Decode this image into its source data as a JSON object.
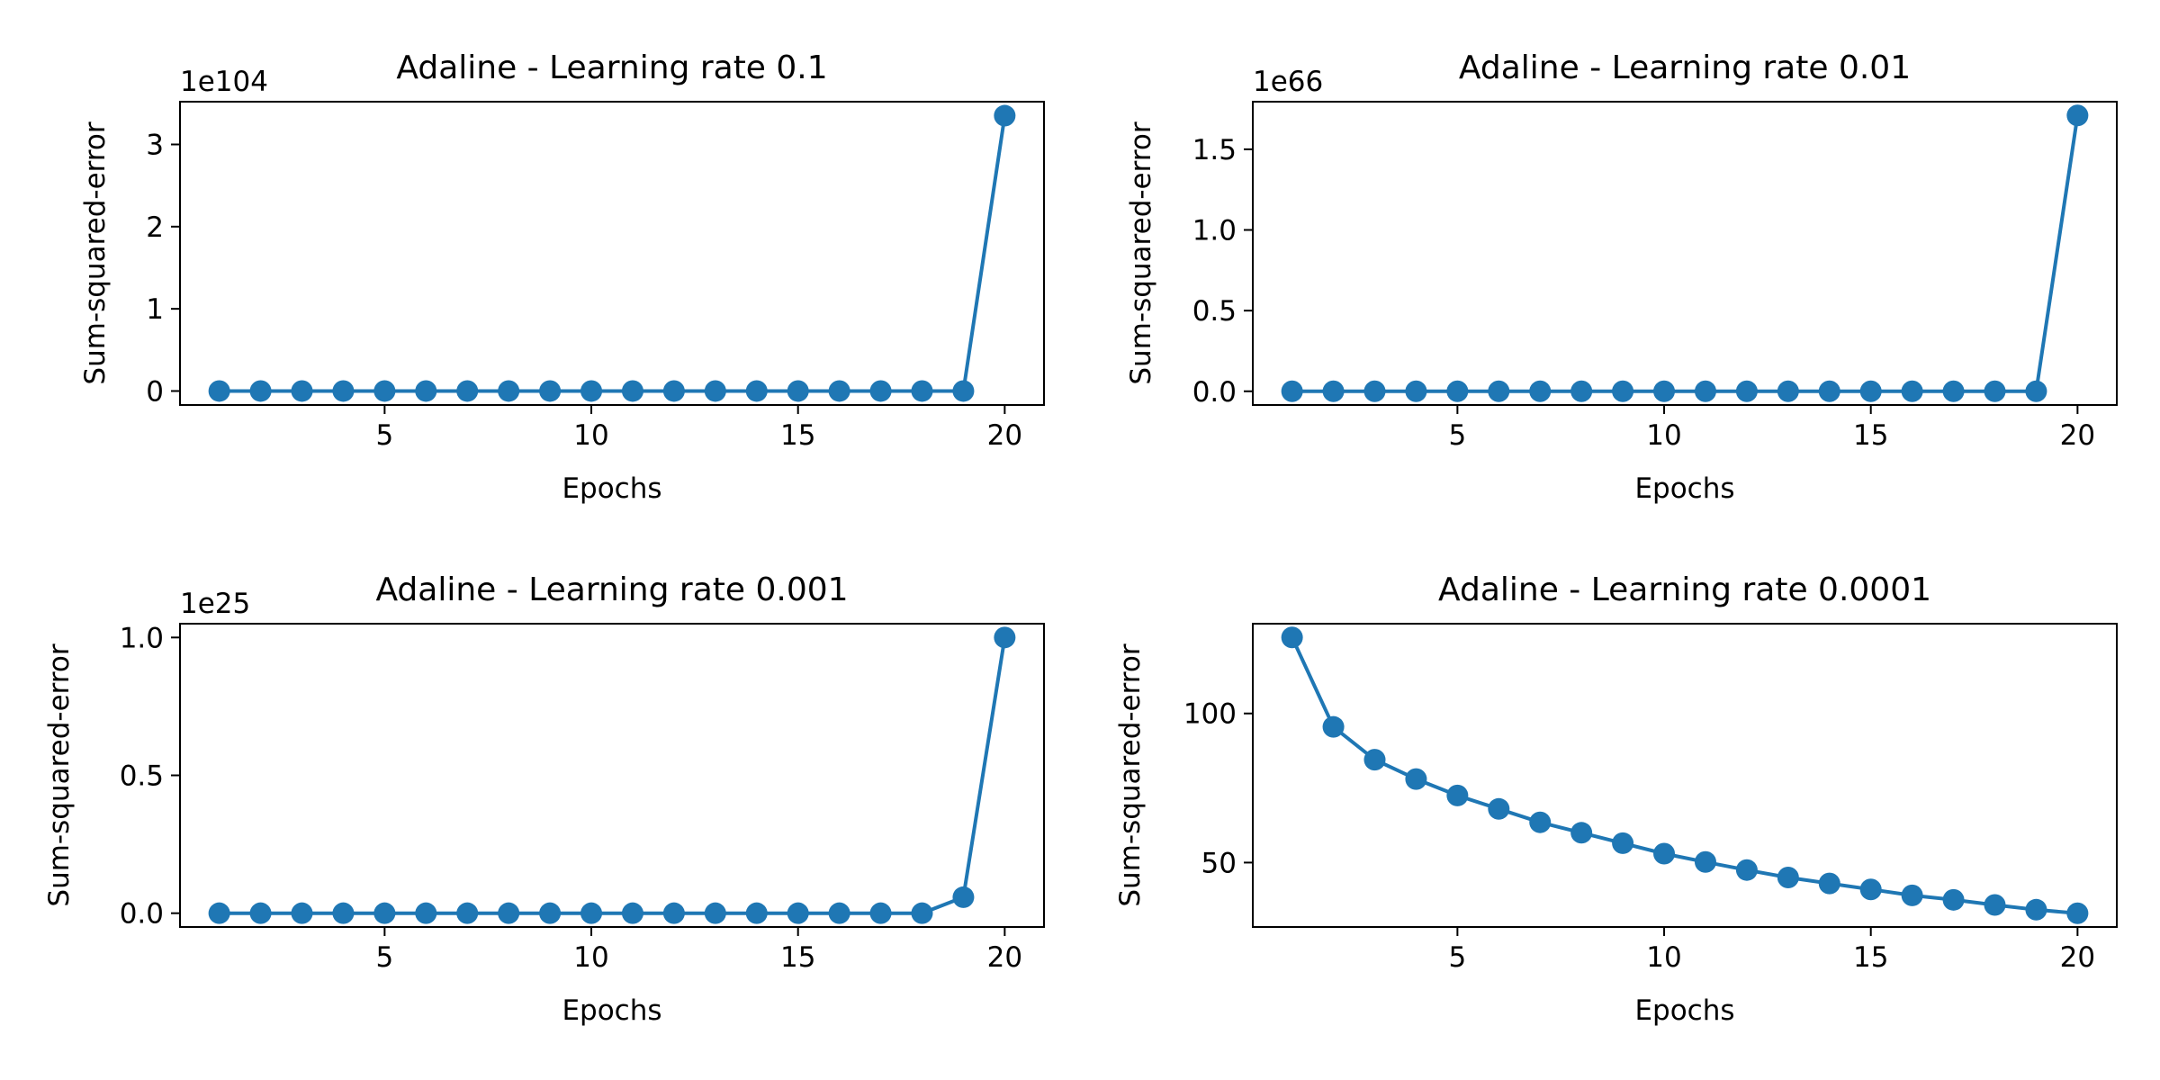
{
  "chart_data": [
    {
      "type": "line",
      "title": "Adaline - Learning rate 0.1",
      "xlabel": "Epochs",
      "ylabel": "Sum-squared-error",
      "offset_text": "1e104",
      "x": [
        1,
        2,
        3,
        4,
        5,
        6,
        7,
        8,
        9,
        10,
        11,
        12,
        13,
        14,
        15,
        16,
        17,
        18,
        19,
        20
      ],
      "series": [
        {
          "values": [
            0,
            0,
            0,
            0,
            0,
            0,
            0,
            0,
            0,
            0,
            0,
            0,
            0,
            0,
            0,
            0,
            0,
            0,
            0,
            3.35
          ]
        }
      ],
      "xlim": [
        0.05,
        20.95
      ],
      "ylim": [
        -0.17,
        3.52
      ],
      "xticks": [
        5,
        10,
        15,
        20
      ],
      "xtick_labels": [
        "5",
        "10",
        "15",
        "20"
      ],
      "yticks": [
        0,
        1,
        2,
        3
      ],
      "ytick_labels": [
        "0",
        "1",
        "2",
        "3"
      ],
      "color": "#1f77b4",
      "grid": false
    },
    {
      "type": "line",
      "title": "Adaline - Learning rate 0.01",
      "xlabel": "Epochs",
      "ylabel": "Sum-squared-error",
      "offset_text": "1e66",
      "x": [
        1,
        2,
        3,
        4,
        5,
        6,
        7,
        8,
        9,
        10,
        11,
        12,
        13,
        14,
        15,
        16,
        17,
        18,
        19,
        20
      ],
      "series": [
        {
          "values": [
            0,
            0,
            0,
            0,
            0,
            0,
            0,
            0,
            0,
            0,
            0,
            0,
            0,
            0,
            0,
            0,
            0,
            0,
            0,
            1.71
          ]
        }
      ],
      "xlim": [
        0.05,
        20.95
      ],
      "ylim": [
        -0.085,
        1.795
      ],
      "xticks": [
        5,
        10,
        15,
        20
      ],
      "xtick_labels": [
        "5",
        "10",
        "15",
        "20"
      ],
      "yticks": [
        0,
        0.5,
        1.0,
        1.5
      ],
      "ytick_labels": [
        "0.0",
        "0.5",
        "1.0",
        "1.5"
      ],
      "color": "#1f77b4",
      "grid": false
    },
    {
      "type": "line",
      "title": "Adaline - Learning rate 0.001",
      "xlabel": "Epochs",
      "ylabel": "Sum-squared-error",
      "offset_text": "1e25",
      "x": [
        1,
        2,
        3,
        4,
        5,
        6,
        7,
        8,
        9,
        10,
        11,
        12,
        13,
        14,
        15,
        16,
        17,
        18,
        19,
        20
      ],
      "series": [
        {
          "values": [
            0,
            0,
            0,
            0,
            0,
            0,
            0,
            0,
            0,
            0,
            0,
            0,
            0,
            0,
            0,
            0,
            0,
            0,
            0.058,
            1.0
          ]
        }
      ],
      "xlim": [
        0.05,
        20.95
      ],
      "ylim": [
        -0.05,
        1.05
      ],
      "xticks": [
        5,
        10,
        15,
        20
      ],
      "xtick_labels": [
        "5",
        "10",
        "15",
        "20"
      ],
      "yticks": [
        0,
        0.5,
        1.0
      ],
      "ytick_labels": [
        "0.0",
        "0.5",
        "1.0"
      ],
      "color": "#1f77b4",
      "grid": false
    },
    {
      "type": "line",
      "title": "Adaline - Learning rate 0.0001",
      "xlabel": "Epochs",
      "ylabel": "Sum-squared-error",
      "offset_text": "",
      "x": [
        1,
        2,
        3,
        4,
        5,
        6,
        7,
        8,
        9,
        10,
        11,
        12,
        13,
        14,
        15,
        16,
        17,
        18,
        19,
        20
      ],
      "series": [
        {
          "values": [
            125.5,
            95.5,
            84.5,
            78,
            72.5,
            68,
            63.5,
            60,
            56.5,
            53,
            50.2,
            47.5,
            45,
            43,
            41,
            39,
            37.5,
            35.8,
            34.2,
            33
          ]
        }
      ],
      "xlim": [
        0.05,
        20.95
      ],
      "ylim": [
        28.4,
        130.1
      ],
      "xticks": [
        5,
        10,
        15,
        20
      ],
      "xtick_labels": [
        "5",
        "10",
        "15",
        "20"
      ],
      "yticks": [
        50,
        100
      ],
      "ytick_labels": [
        "50",
        "100"
      ],
      "color": "#1f77b4",
      "grid": false
    }
  ]
}
